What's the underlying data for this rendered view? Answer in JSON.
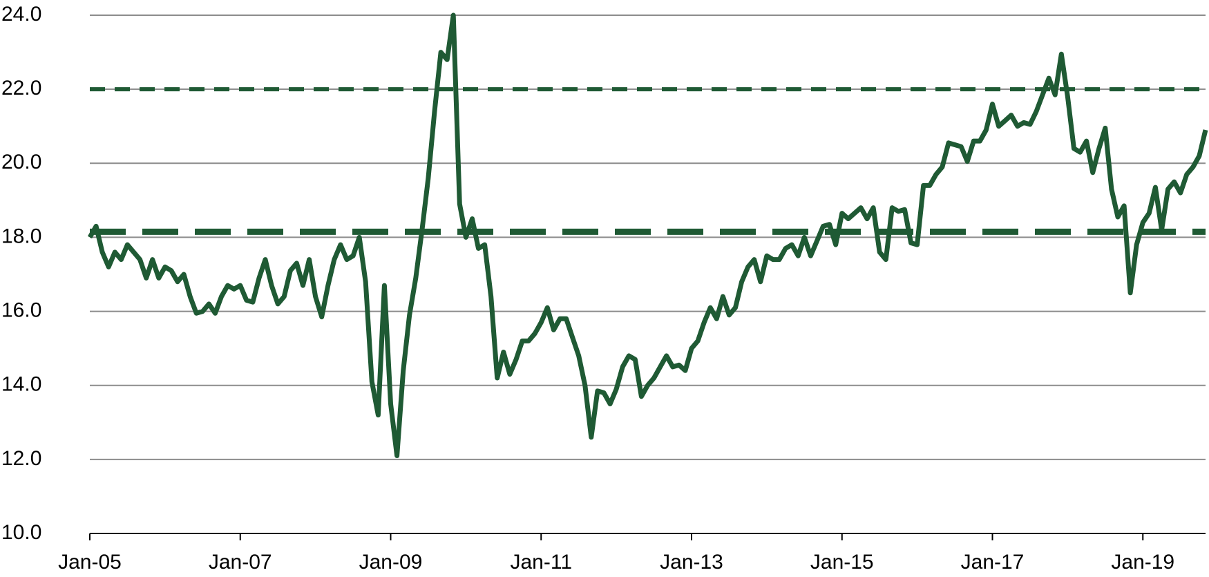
{
  "chart_data": {
    "type": "line",
    "categories": [
      "Jan-05",
      null,
      null,
      null,
      null,
      null,
      null,
      null,
      null,
      null,
      null,
      null,
      null,
      null,
      null,
      null,
      null,
      null,
      null,
      null,
      null,
      null,
      null,
      null,
      "Jan-07",
      null,
      null,
      null,
      null,
      null,
      null,
      null,
      null,
      null,
      null,
      null,
      null,
      null,
      null,
      null,
      null,
      null,
      null,
      null,
      null,
      null,
      null,
      null,
      "Jan-09",
      null,
      null,
      null,
      null,
      null,
      null,
      null,
      null,
      null,
      null,
      null,
      null,
      null,
      null,
      null,
      null,
      null,
      null,
      null,
      null,
      null,
      null,
      null,
      "Jan-11",
      null,
      null,
      null,
      null,
      null,
      null,
      null,
      null,
      null,
      null,
      null,
      null,
      null,
      null,
      null,
      null,
      null,
      null,
      null,
      null,
      null,
      null,
      null,
      "Jan-13",
      null,
      null,
      null,
      null,
      null,
      null,
      null,
      null,
      null,
      null,
      null,
      null,
      null,
      null,
      null,
      null,
      null,
      null,
      null,
      null,
      null,
      null,
      null,
      "Jan-15",
      null,
      null,
      null,
      null,
      null,
      null,
      null,
      null,
      null,
      null,
      null,
      null,
      null,
      null,
      null,
      null,
      null,
      null,
      null,
      null,
      null,
      null,
      null,
      "Jan-17",
      null,
      null,
      null,
      null,
      null,
      null,
      null,
      null,
      null,
      null,
      null,
      null,
      null,
      null,
      null,
      null,
      null,
      null,
      null,
      null,
      null,
      null,
      null,
      "Jan-19",
      null,
      null,
      null,
      null,
      null,
      null,
      null,
      null,
      null,
      null
    ],
    "series": [
      {
        "color": "#1f5a34",
        "values": [
          18.0,
          18.3,
          17.6,
          17.2,
          17.6,
          17.4,
          17.8,
          17.6,
          17.4,
          16.9,
          17.4,
          16.9,
          17.2,
          17.1,
          16.8,
          17.0,
          16.4,
          15.95,
          16.0,
          16.2,
          15.95,
          16.4,
          16.7,
          16.6,
          16.7,
          16.3,
          16.25,
          16.9,
          17.4,
          16.7,
          16.2,
          16.4,
          17.1,
          17.3,
          16.7,
          17.4,
          16.4,
          15.85,
          16.7,
          17.4,
          17.8,
          17.4,
          17.5,
          18.0,
          16.8,
          14.1,
          13.2,
          16.7,
          13.5,
          12.1,
          14.4,
          15.9,
          16.9,
          18.2,
          19.6,
          21.4,
          23.0,
          22.8,
          24.0,
          18.9,
          18.0,
          18.5,
          17.7,
          17.8,
          16.4,
          14.2,
          14.9,
          14.3,
          14.7,
          15.2,
          15.2,
          15.4,
          15.7,
          16.1,
          15.5,
          15.8,
          15.8,
          15.3,
          14.8,
          14.0,
          12.6,
          13.85,
          13.8,
          13.5,
          13.9,
          14.5,
          14.8,
          14.7,
          13.7,
          14.0,
          14.2,
          14.5,
          14.8,
          14.5,
          14.55,
          14.4,
          15.0,
          15.2,
          15.7,
          16.1,
          15.8,
          16.4,
          15.9,
          16.1,
          16.8,
          17.2,
          17.4,
          16.8,
          17.5,
          17.4,
          17.4,
          17.7,
          17.8,
          17.5,
          18.0,
          17.5,
          17.9,
          18.3,
          18.35,
          17.8,
          18.65,
          18.5,
          18.65,
          18.8,
          18.5,
          18.8,
          17.6,
          17.4,
          18.8,
          18.7,
          18.75,
          17.85,
          17.8,
          19.4,
          19.4,
          19.7,
          19.9,
          20.55,
          20.5,
          20.45,
          20.05,
          20.6,
          20.6,
          20.9,
          21.6,
          21.0,
          21.15,
          21.3,
          21.0,
          21.1,
          21.05,
          21.4,
          21.85,
          22.3,
          21.85,
          22.95,
          21.8,
          20.4,
          20.3,
          20.6,
          19.75,
          20.4,
          20.95,
          19.3,
          18.55,
          18.85,
          16.5,
          17.8,
          18.4,
          18.65,
          19.35,
          18.2,
          19.3,
          19.5,
          19.2,
          19.7,
          19.9,
          20.2,
          20.9
        ]
      }
    ],
    "hlines": [
      {
        "value": 22.0,
        "style": "dotted",
        "color": "#1f5a34"
      },
      {
        "value": 18.15,
        "style": "dashed",
        "color": "#1f5a34"
      }
    ],
    "ylim": [
      10,
      24
    ],
    "yticks": [
      {
        "value": 10,
        "label": "10.0"
      },
      {
        "value": 12,
        "label": "12.0"
      },
      {
        "value": 14,
        "label": "14.0"
      },
      {
        "value": 16,
        "label": "16.0"
      },
      {
        "value": 18,
        "label": "18.0"
      },
      {
        "value": 20,
        "label": "20.0"
      },
      {
        "value": 22,
        "label": "22.0"
      },
      {
        "value": 24,
        "label": "24.0"
      }
    ],
    "grid": true
  }
}
